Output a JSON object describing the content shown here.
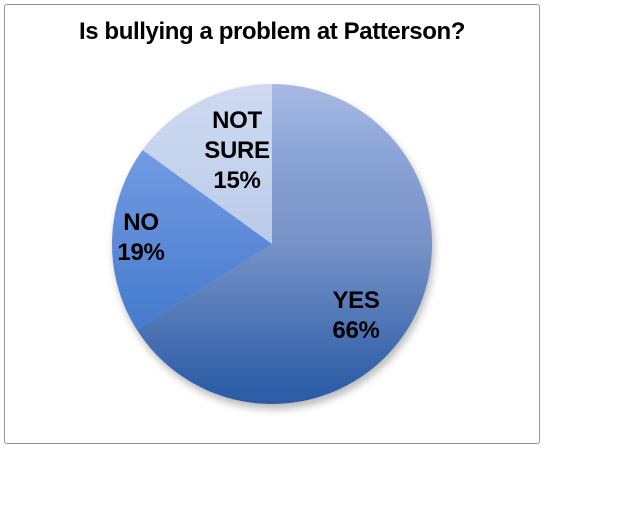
{
  "frame": {
    "background": "#FFFFFF",
    "border_color": "#929292"
  },
  "chart_data": {
    "type": "pie",
    "title": "Is bullying a problem at Patterson?",
    "categories": [
      "YES",
      "NO",
      "NOT SURE"
    ],
    "values": [
      66,
      19,
      15
    ],
    "display_values": [
      "66%",
      "19%",
      "15%"
    ],
    "unit": "%",
    "start_angle_deg": 0,
    "direction": "clockwise",
    "legend": "none",
    "labels_on_slices": true,
    "label_color": "#000000",
    "slices": [
      {
        "id": "yes",
        "label": "YES",
        "value": 66,
        "display": "66%",
        "gradient": [
          [
            0,
            "#A8BAE4"
          ],
          [
            0.21,
            "#8CA5D8"
          ],
          [
            0.5,
            "#7792C7"
          ],
          [
            0.94,
            "#2F5FA8"
          ],
          [
            1,
            "#2C5CA5"
          ]
        ]
      },
      {
        "id": "no",
        "label": "NO",
        "value": 19,
        "display": "19%",
        "gradient": [
          [
            0,
            "#82A8EA"
          ],
          [
            0.2,
            "#729CE3"
          ],
          [
            0.475,
            "#5E8BD8"
          ],
          [
            0.66,
            "#4C81D1"
          ],
          [
            1,
            "#3A70C6"
          ]
        ]
      },
      {
        "id": "not_sure",
        "label": "NOT SURE",
        "value": 15,
        "display": "15%",
        "gradient": [
          [
            0,
            "#CFDAF1"
          ],
          [
            0.25,
            "#C5D3EE"
          ],
          [
            0.5,
            "#BACAE9"
          ],
          [
            1,
            "#A0B6E0"
          ]
        ]
      }
    ]
  }
}
